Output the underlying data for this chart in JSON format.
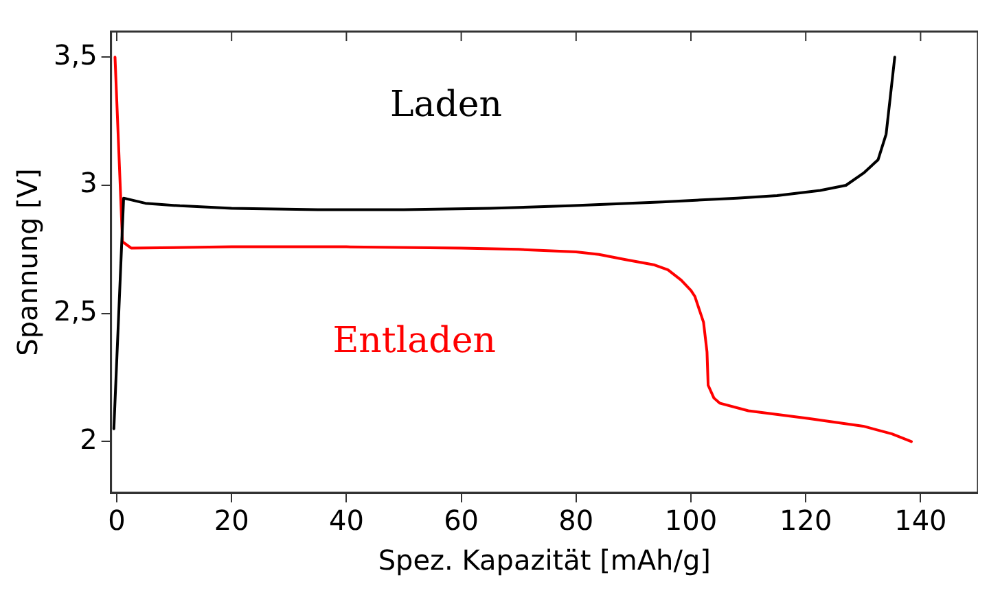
{
  "chart_data": {
    "type": "line",
    "xlabel": "Spez. Kapazität [mAh/g]",
    "ylabel": "Spannung [V]",
    "xlim": [
      -1,
      150
    ],
    "xticks": [
      0,
      20,
      40,
      60,
      80,
      100,
      120,
      140
    ],
    "ylim": [
      1.8,
      3.6
    ],
    "yticks": [
      {
        "value": 2,
        "label": "2"
      },
      {
        "value": 2.5,
        "label": "2,5"
      },
      {
        "value": 3,
        "label": "3"
      },
      {
        "value": 3.5,
        "label": "3,5"
      }
    ],
    "grid": false,
    "legend": false,
    "marker": "none",
    "line_style": "solid",
    "series": [
      {
        "name": "Laden",
        "color": "#000000",
        "x": [
          -0.5,
          1.2,
          5,
          11,
          20,
          35,
          50,
          65,
          79,
          95,
          108,
          115,
          122.5,
          127,
          130.2,
          132.6,
          134,
          135.5
        ],
        "values": [
          2.05,
          2.95,
          2.93,
          2.92,
          2.91,
          2.905,
          2.905,
          2.91,
          2.92,
          2.935,
          2.95,
          2.96,
          2.98,
          3.0,
          3.05,
          3.1,
          3.2,
          3.5
        ]
      },
      {
        "name": "Entladen",
        "color": "#ff0000",
        "x": [
          -0.3,
          1,
          2.5,
          20,
          40,
          60,
          70,
          80,
          84,
          88.6,
          93.5,
          96,
          98.3,
          100,
          100.7,
          102.2,
          102.8,
          103,
          104,
          105,
          110,
          120.5,
          130,
          135,
          138.4
        ],
        "values": [
          3.5,
          2.78,
          2.755,
          2.76,
          2.76,
          2.755,
          2.75,
          2.74,
          2.73,
          2.71,
          2.69,
          2.67,
          2.63,
          2.59,
          2.566,
          2.465,
          2.35,
          2.22,
          2.17,
          2.15,
          2.12,
          2.09,
          2.06,
          2.03,
          2.0
        ]
      }
    ]
  }
}
